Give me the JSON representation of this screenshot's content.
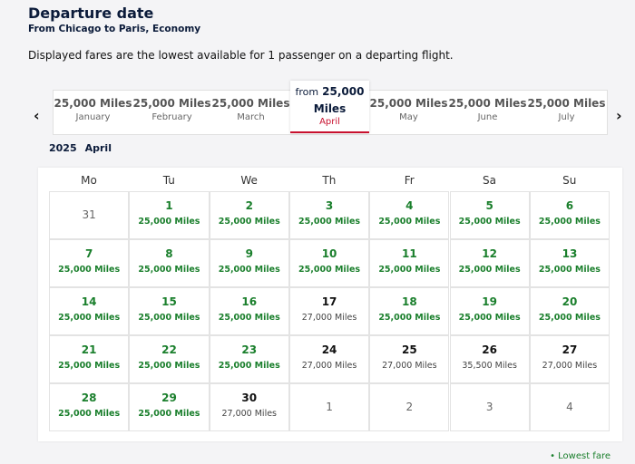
{
  "header": {
    "title": "Departure date",
    "subtitle": "From Chicago to Paris, Economy"
  },
  "note": "Displayed fares are the lowest available for 1 passenger on a departing flight.",
  "tabs": [
    {
      "fare": "25,000 Miles",
      "month": "January"
    },
    {
      "fare": "25,000 Miles",
      "month": "February"
    },
    {
      "fare": "25,000 Miles",
      "month": "March"
    },
    {
      "prefix": "from",
      "fare": "25,000 Miles",
      "month": "April",
      "selected": true
    },
    {
      "fare": "25,000 Miles",
      "month": "May"
    },
    {
      "fare": "25,000 Miles",
      "month": "June"
    },
    {
      "fare": "25,000 Miles",
      "month": "July"
    }
  ],
  "calendar": {
    "year": "2025",
    "month": "April",
    "weekdays": [
      "Mo",
      "Tu",
      "We",
      "Th",
      "Fr",
      "Sa",
      "Su"
    ],
    "weeks": [
      [
        {
          "day": "31",
          "outside": true
        },
        {
          "day": "1",
          "fare": "25,000 Miles",
          "lowest": true
        },
        {
          "day": "2",
          "fare": "25,000 Miles",
          "lowest": true
        },
        {
          "day": "3",
          "fare": "25,000 Miles",
          "lowest": true
        },
        {
          "day": "4",
          "fare": "25,000 Miles",
          "lowest": true
        },
        {
          "day": "5",
          "fare": "25,000 Miles",
          "lowest": true
        },
        {
          "day": "6",
          "fare": "25,000 Miles",
          "lowest": true
        }
      ],
      [
        {
          "day": "7",
          "fare": "25,000 Miles",
          "lowest": true
        },
        {
          "day": "8",
          "fare": "25,000 Miles",
          "lowest": true
        },
        {
          "day": "9",
          "fare": "25,000 Miles",
          "lowest": true
        },
        {
          "day": "10",
          "fare": "25,000 Miles",
          "lowest": true
        },
        {
          "day": "11",
          "fare": "25,000 Miles",
          "lowest": true
        },
        {
          "day": "12",
          "fare": "25,000 Miles",
          "lowest": true
        },
        {
          "day": "13",
          "fare": "25,000 Miles",
          "lowest": true
        }
      ],
      [
        {
          "day": "14",
          "fare": "25,000 Miles",
          "lowest": true
        },
        {
          "day": "15",
          "fare": "25,000 Miles",
          "lowest": true
        },
        {
          "day": "16",
          "fare": "25,000 Miles",
          "lowest": true
        },
        {
          "day": "17",
          "fare": "27,000 Miles"
        },
        {
          "day": "18",
          "fare": "25,000 Miles",
          "lowest": true
        },
        {
          "day": "19",
          "fare": "25,000 Miles",
          "lowest": true
        },
        {
          "day": "20",
          "fare": "25,000 Miles",
          "lowest": true
        }
      ],
      [
        {
          "day": "21",
          "fare": "25,000 Miles",
          "lowest": true
        },
        {
          "day": "22",
          "fare": "25,000 Miles",
          "lowest": true
        },
        {
          "day": "23",
          "fare": "25,000 Miles",
          "lowest": true
        },
        {
          "day": "24",
          "fare": "27,000 Miles"
        },
        {
          "day": "25",
          "fare": "27,000 Miles"
        },
        {
          "day": "26",
          "fare": "35,500 Miles"
        },
        {
          "day": "27",
          "fare": "27,000 Miles"
        }
      ],
      [
        {
          "day": "28",
          "fare": "25,000 Miles",
          "lowest": true
        },
        {
          "day": "29",
          "fare": "25,000 Miles",
          "lowest": true
        },
        {
          "day": "30",
          "fare": "27,000 Miles"
        },
        {
          "day": "1",
          "outside": true
        },
        {
          "day": "2",
          "outside": true
        },
        {
          "day": "3",
          "outside": true
        },
        {
          "day": "4",
          "outside": true
        }
      ]
    ]
  },
  "legend": "Lowest fare"
}
